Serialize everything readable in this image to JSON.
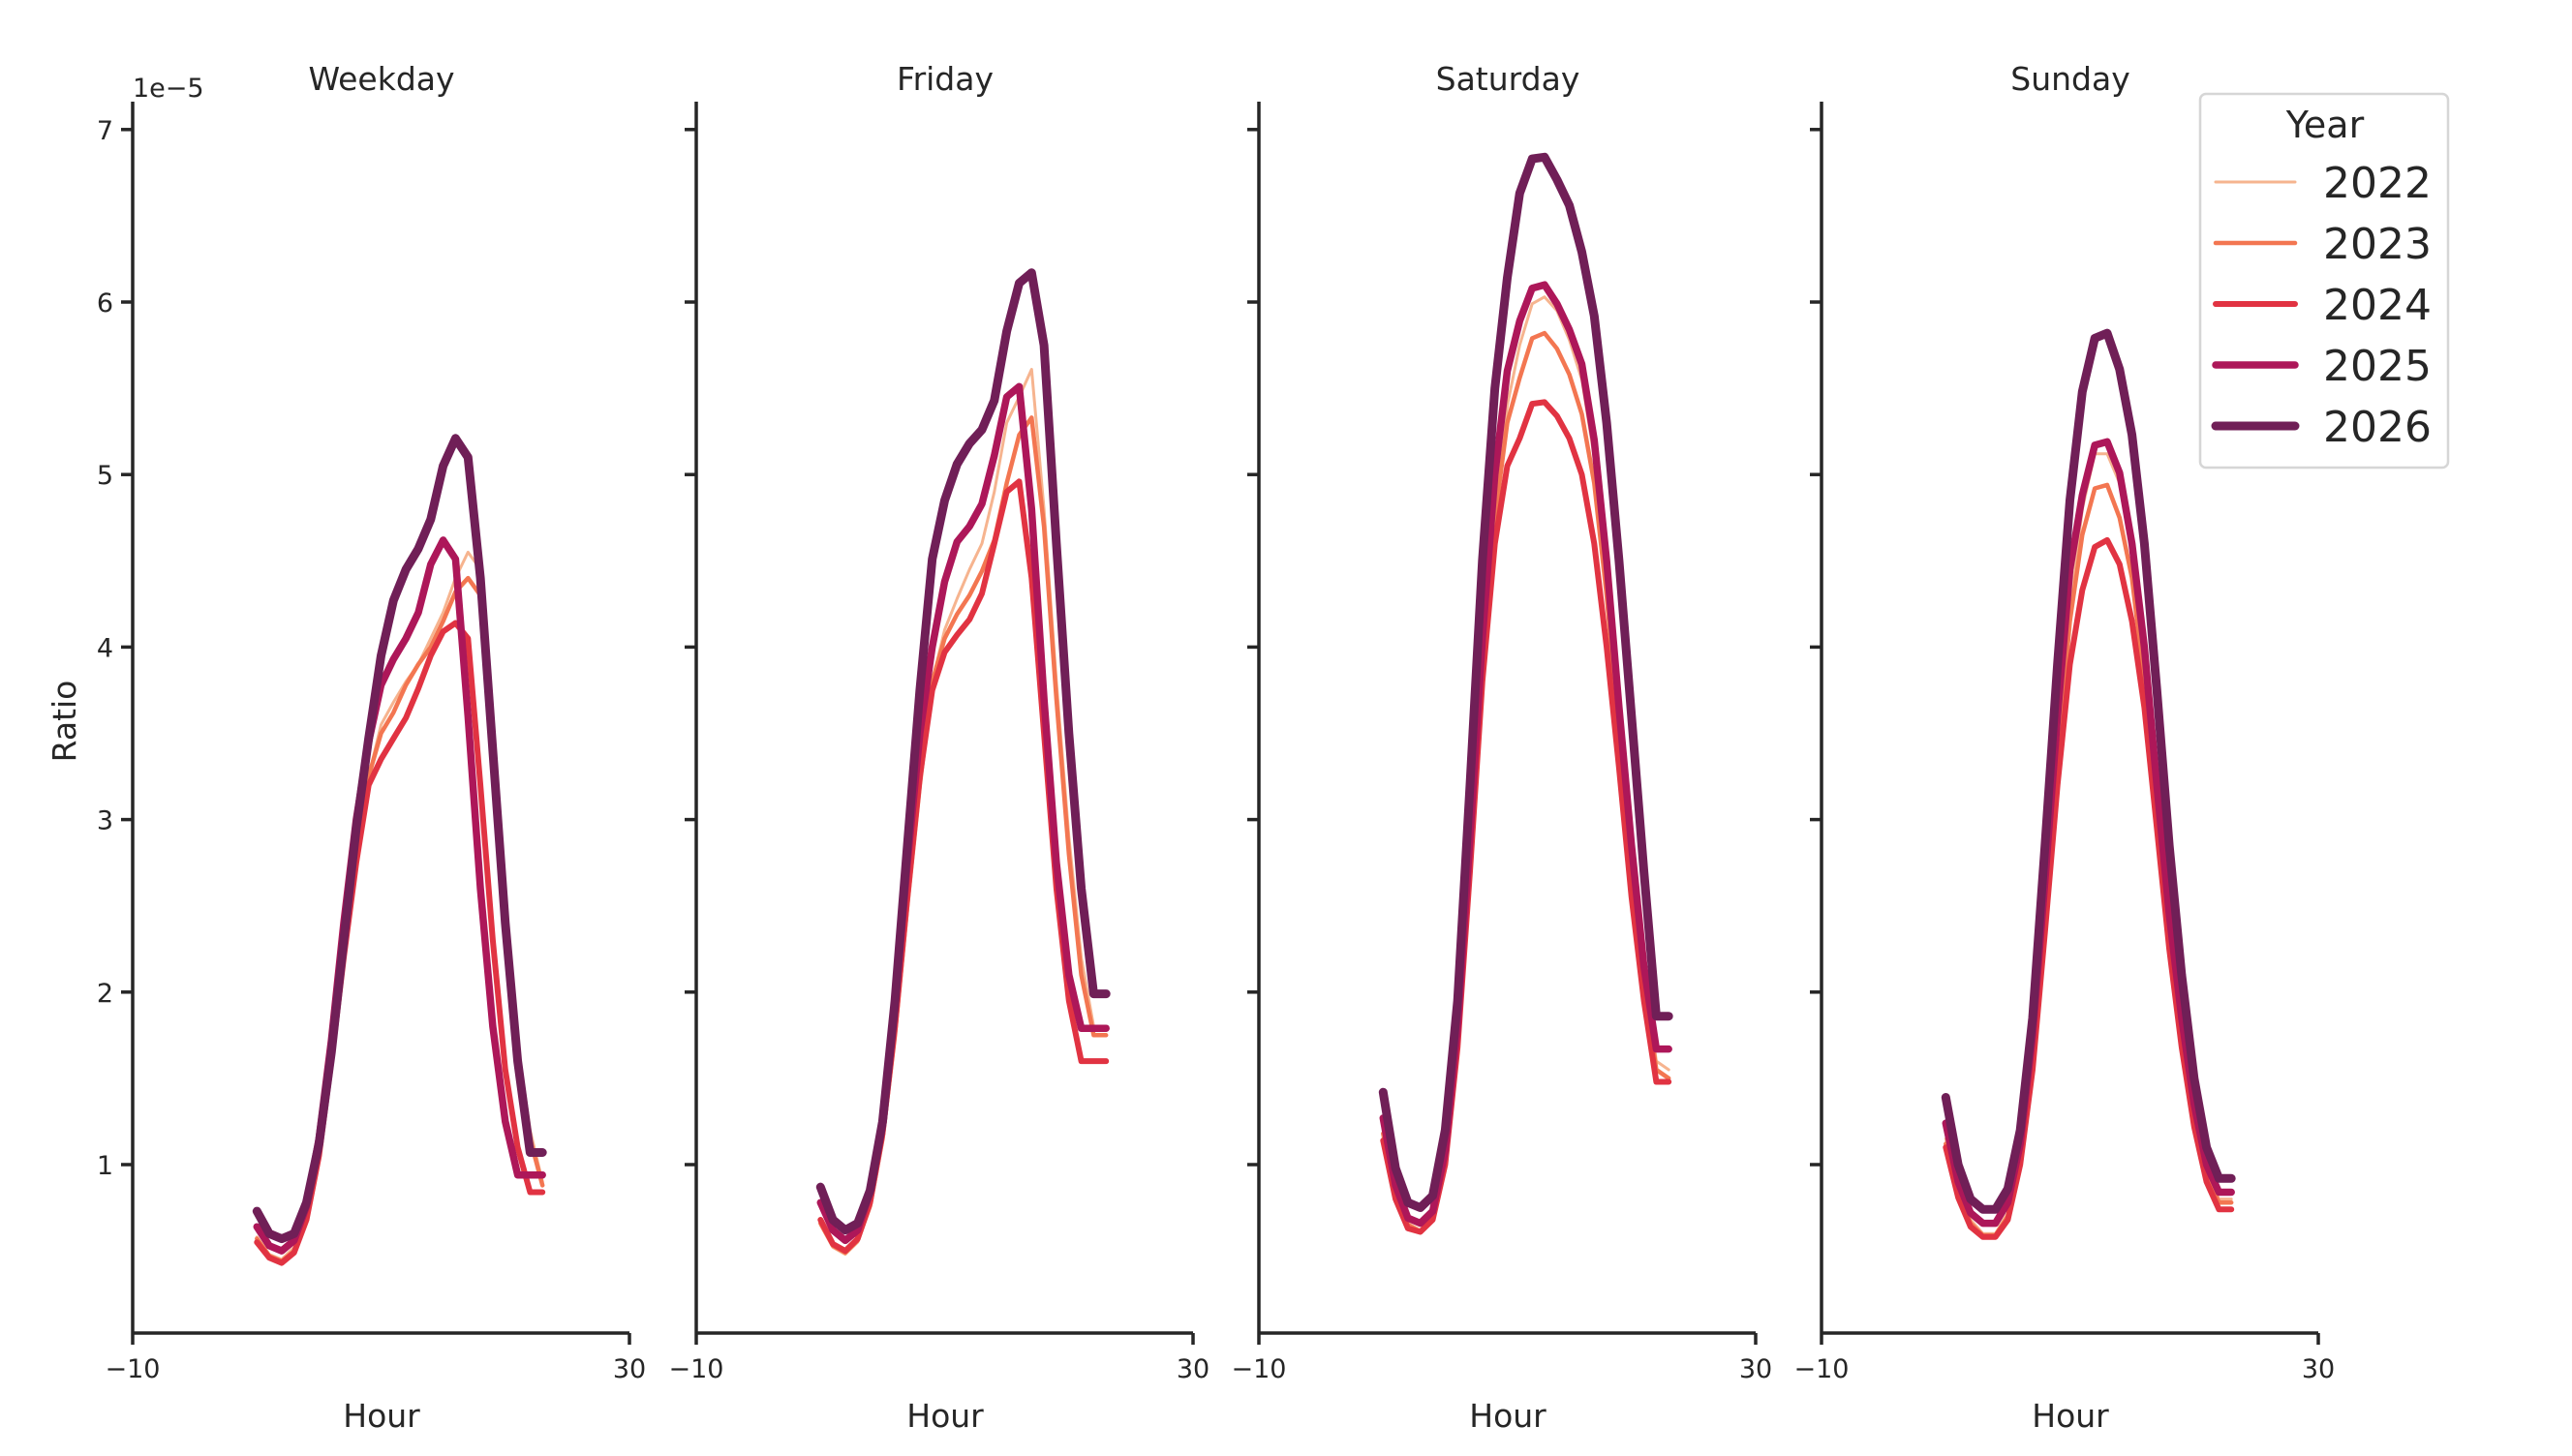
{
  "figure": {
    "ylabel": "Ratio",
    "xlabel": "Hour",
    "y_offset_label": "1e−5",
    "x_ticks": [
      {
        "value": -10,
        "label": "−10"
      },
      {
        "value": 30,
        "label": "30"
      }
    ],
    "y_ticks": [
      {
        "value": 1,
        "label": "1"
      },
      {
        "value": 2,
        "label": "2"
      },
      {
        "value": 3,
        "label": "3"
      },
      {
        "value": 4,
        "label": "4"
      },
      {
        "value": 5,
        "label": "5"
      },
      {
        "value": 6,
        "label": "6"
      },
      {
        "value": 7,
        "label": "7"
      }
    ],
    "legend": {
      "title": "Year",
      "entries": [
        {
          "label": "2022",
          "color": "#f6b48f",
          "width": 3
        },
        {
          "label": "2023",
          "color": "#f37651",
          "width": 4.5
        },
        {
          "label": "2024",
          "color": "#e13342",
          "width": 6
        },
        {
          "label": "2025",
          "color": "#ad1759",
          "width": 7.5
        },
        {
          "label": "2026",
          "color": "#701f57",
          "width": 9
        }
      ]
    }
  },
  "chart_data": {
    "type": "line",
    "title": "",
    "xlabel": "Hour",
    "ylabel": "Ratio",
    "y_scale_note": "values × 1e−5",
    "xlim": [
      -10,
      30
    ],
    "ylim": [
      0.02,
      7.16
    ],
    "grid": false,
    "legend_position": "upper right (outside last panel)",
    "legend_title": "Year",
    "x": [
      0,
      1,
      2,
      3,
      4,
      5,
      6,
      7,
      8,
      9,
      10,
      11,
      12,
      13,
      14,
      15,
      16,
      17,
      18,
      19,
      20,
      21,
      22,
      23
    ],
    "panels": [
      {
        "title": "Weekday",
        "series": [
          {
            "name": "2022",
            "values": [
              0.58,
              0.48,
              0.45,
              0.52,
              0.72,
              1.1,
              1.65,
              2.25,
              2.8,
              3.25,
              3.55,
              3.68,
              3.8,
              3.9,
              4.05,
              4.2,
              4.4,
              4.55,
              4.45,
              3.5,
              2.5,
              1.7,
              1.2,
              0.9
            ]
          },
          {
            "name": "2023",
            "values": [
              0.57,
              0.47,
              0.44,
              0.5,
              0.7,
              1.08,
              1.62,
              2.22,
              2.78,
              3.25,
              3.5,
              3.62,
              3.78,
              3.9,
              4.0,
              4.15,
              4.32,
              4.4,
              4.3,
              3.4,
              2.4,
              1.65,
              1.15,
              0.88
            ]
          },
          {
            "name": "2024",
            "values": [
              0.55,
              0.46,
              0.43,
              0.49,
              0.68,
              1.05,
              1.6,
              2.2,
              2.75,
              3.2,
              3.35,
              3.47,
              3.59,
              3.76,
              3.95,
              4.09,
              4.14,
              4.05,
              3.2,
              2.3,
              1.55,
              1.1,
              0.84,
              0.84
            ]
          },
          {
            "name": "2025",
            "values": [
              0.64,
              0.53,
              0.5,
              0.56,
              0.76,
              1.15,
              1.72,
              2.4,
              3.0,
              3.45,
              3.78,
              3.93,
              4.05,
              4.2,
              4.48,
              4.62,
              4.51,
              3.6,
              2.6,
              1.8,
              1.25,
              0.94,
              0.94,
              0.94
            ]
          },
          {
            "name": "2026",
            "values": [
              0.73,
              0.6,
              0.57,
              0.6,
              0.78,
              1.12,
              1.65,
              2.3,
              2.95,
              3.47,
              3.95,
              4.27,
              4.45,
              4.57,
              4.74,
              5.05,
              5.21,
              5.1,
              4.4,
              3.4,
              2.4,
              1.6,
              1.07,
              1.07
            ]
          }
        ]
      },
      {
        "title": "Friday",
        "series": [
          {
            "name": "2022",
            "values": [
              0.65,
              0.52,
              0.48,
              0.55,
              0.75,
              1.15,
              1.75,
              2.5,
              3.2,
              3.8,
              4.1,
              4.28,
              4.45,
              4.6,
              4.9,
              5.3,
              5.45,
              5.61,
              4.8,
              3.8,
              2.9,
              2.2,
              1.8,
              1.8
            ]
          },
          {
            "name": "2023",
            "values": [
              0.66,
              0.53,
              0.49,
              0.56,
              0.76,
              1.15,
              1.75,
              2.5,
              3.2,
              3.8,
              4.05,
              4.19,
              4.3,
              4.44,
              4.62,
              4.95,
              5.23,
              5.33,
              4.7,
              3.7,
              2.8,
              2.1,
              1.75,
              1.75
            ]
          },
          {
            "name": "2024",
            "values": [
              0.68,
              0.54,
              0.5,
              0.57,
              0.78,
              1.18,
              1.8,
              2.55,
              3.25,
              3.75,
              3.97,
              4.07,
              4.16,
              4.31,
              4.6,
              4.9,
              4.96,
              4.4,
              3.5,
              2.6,
              1.95,
              1.6,
              1.6,
              1.6
            ]
          },
          {
            "name": "2025",
            "values": [
              0.78,
              0.62,
              0.56,
              0.62,
              0.84,
              1.25,
              1.9,
              2.75,
              3.5,
              4.0,
              4.38,
              4.61,
              4.7,
              4.83,
              5.11,
              5.45,
              5.51,
              4.8,
              3.7,
              2.75,
              2.1,
              1.79,
              1.79,
              1.79
            ]
          },
          {
            "name": "2026",
            "values": [
              0.87,
              0.68,
              0.62,
              0.66,
              0.85,
              1.25,
              1.95,
              2.85,
              3.75,
              4.51,
              4.85,
              5.06,
              5.18,
              5.26,
              5.43,
              5.83,
              6.11,
              6.17,
              5.75,
              4.6,
              3.5,
              2.6,
              1.99,
              1.99
            ]
          }
        ]
      },
      {
        "title": "Saturday",
        "series": [
          {
            "name": "2022",
            "values": [
              1.2,
              0.85,
              0.66,
              0.62,
              0.7,
              1.05,
              1.75,
              2.8,
              3.9,
              4.8,
              5.4,
              5.75,
              5.99,
              6.03,
              5.95,
              5.78,
              5.55,
              5.1,
              4.4,
              3.6,
              2.8,
              2.1,
              1.6,
              1.55
            ]
          },
          {
            "name": "2023",
            "values": [
              1.18,
              0.83,
              0.65,
              0.61,
              0.69,
              1.03,
              1.72,
              2.75,
              3.85,
              4.75,
              5.3,
              5.56,
              5.79,
              5.82,
              5.73,
              5.58,
              5.35,
              4.95,
              4.3,
              3.5,
              2.7,
              2.05,
              1.55,
              1.5
            ]
          },
          {
            "name": "2024",
            "values": [
              1.14,
              0.8,
              0.63,
              0.61,
              0.68,
              1.0,
              1.68,
              2.7,
              3.8,
              4.6,
              5.05,
              5.21,
              5.41,
              5.42,
              5.34,
              5.21,
              5.0,
              4.6,
              4.0,
              3.3,
              2.55,
              1.95,
              1.48,
              1.48
            ]
          },
          {
            "name": "2025",
            "values": [
              1.27,
              0.88,
              0.69,
              0.66,
              0.73,
              1.08,
              1.8,
              2.9,
              4.05,
              5.0,
              5.6,
              5.89,
              6.08,
              6.1,
              5.99,
              5.84,
              5.64,
              5.2,
              4.5,
              3.65,
              2.85,
              2.15,
              1.67,
              1.67
            ]
          },
          {
            "name": "2026",
            "values": [
              1.42,
              0.98,
              0.78,
              0.75,
              0.82,
              1.2,
              1.95,
              3.2,
              4.5,
              5.5,
              6.14,
              6.63,
              6.83,
              6.84,
              6.71,
              6.56,
              6.29,
              5.92,
              5.3,
              4.5,
              3.6,
              2.7,
              1.86,
              1.86
            ]
          }
        ]
      },
      {
        "title": "Sunday",
        "series": [
          {
            "name": "2022",
            "values": [
              1.15,
              0.85,
              0.68,
              0.6,
              0.6,
              0.72,
              1.05,
              1.65,
              2.5,
              3.4,
              4.2,
              4.8,
              5.12,
              5.12,
              4.95,
              4.55,
              3.9,
              3.1,
              2.4,
              1.8,
              1.3,
              0.95,
              0.8,
              0.8
            ]
          },
          {
            "name": "2023",
            "values": [
              1.12,
              0.83,
              0.66,
              0.59,
              0.59,
              0.7,
              1.02,
              1.6,
              2.45,
              3.35,
              4.15,
              4.65,
              4.92,
              4.94,
              4.75,
              4.4,
              3.8,
              3.05,
              2.35,
              1.75,
              1.28,
              0.94,
              0.78,
              0.78
            ]
          },
          {
            "name": "2024",
            "values": [
              1.1,
              0.81,
              0.64,
              0.58,
              0.58,
              0.68,
              1.0,
              1.55,
              2.35,
              3.2,
              3.9,
              4.33,
              4.58,
              4.62,
              4.48,
              4.15,
              3.65,
              2.95,
              2.25,
              1.68,
              1.22,
              0.9,
              0.74,
              0.74
            ]
          },
          {
            "name": "2025",
            "values": [
              1.24,
              0.9,
              0.72,
              0.66,
              0.66,
              0.78,
              1.12,
              1.75,
              2.65,
              3.6,
              4.45,
              4.88,
              5.17,
              5.19,
              5.01,
              4.6,
              4.0,
              3.2,
              2.45,
              1.85,
              1.35,
              1.0,
              0.84,
              0.84
            ]
          },
          {
            "name": "2026",
            "values": [
              1.39,
              1.0,
              0.8,
              0.74,
              0.74,
              0.86,
              1.2,
              1.85,
              2.85,
              3.9,
              4.85,
              5.48,
              5.79,
              5.82,
              5.61,
              5.23,
              4.6,
              3.75,
              2.85,
              2.1,
              1.5,
              1.1,
              0.92,
              0.92
            ]
          }
        ]
      }
    ]
  }
}
